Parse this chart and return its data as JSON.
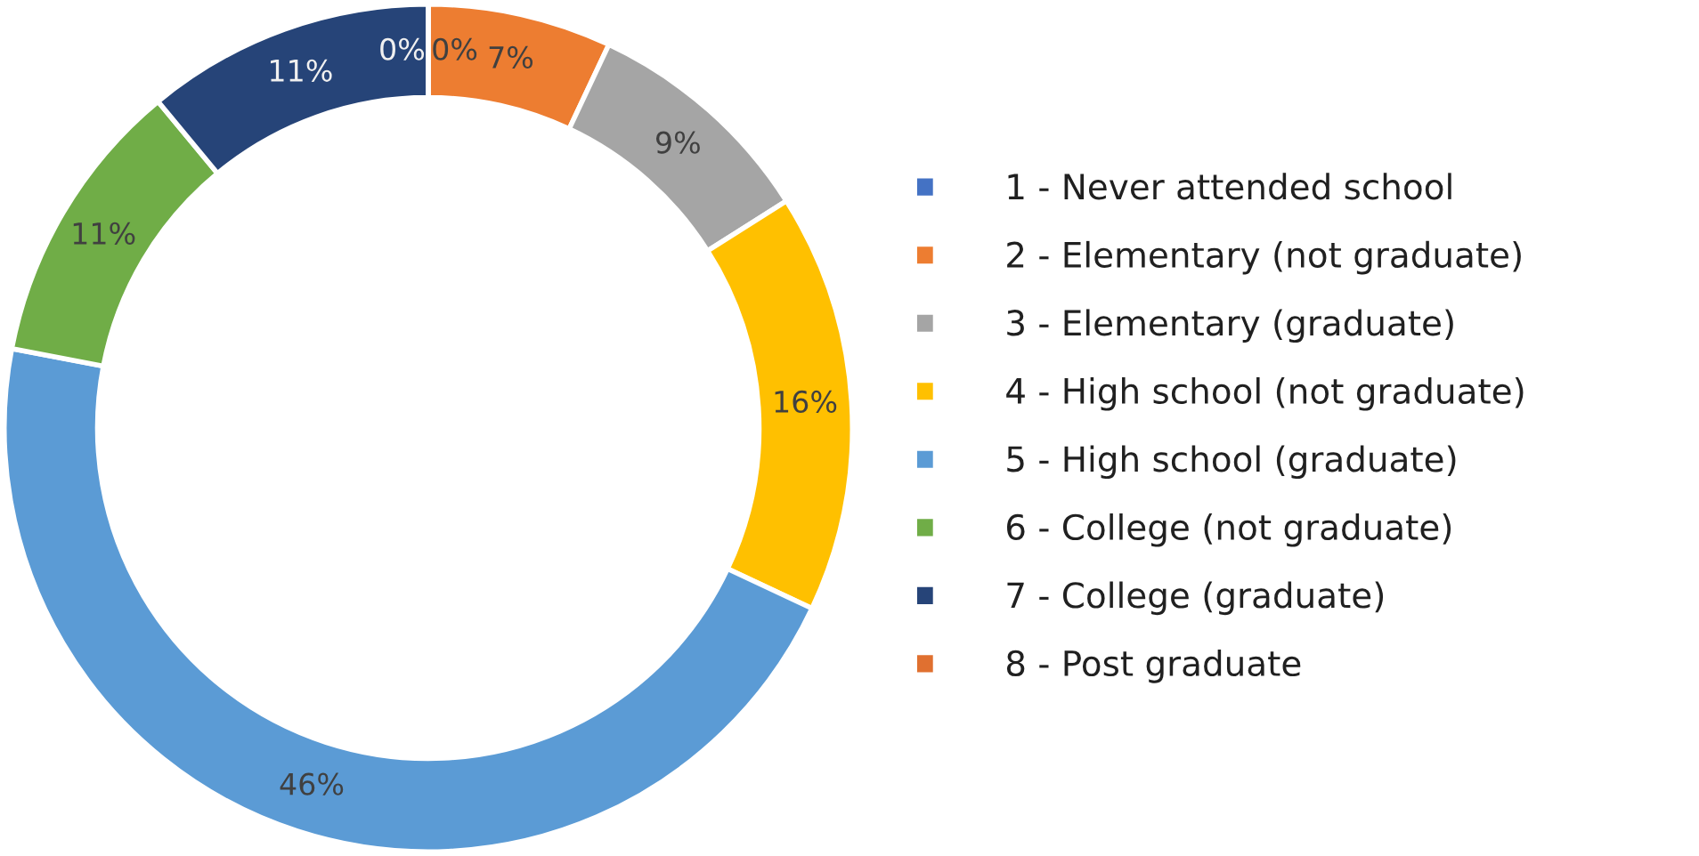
{
  "chart_data": {
    "type": "donut",
    "categories": [
      "1 - Never attended school",
      "2 - Elementary (not graduate)",
      "3 - Elementary (graduate)",
      "4 - High school (not graduate)",
      "5 - High school (graduate)",
      "6 - College (not graduate)",
      "7 - College (graduate)",
      "8 - Post graduate"
    ],
    "values": [
      0,
      7,
      9,
      16,
      46,
      11,
      11,
      0
    ],
    "colors": [
      "#4472c4",
      "#ed7d31",
      "#a5a5a5",
      "#ffc000",
      "#5b9bd5",
      "#70ad47",
      "#264478",
      "#e07030"
    ],
    "value_labels": [
      "0%",
      "7%",
      "9%",
      "16%",
      "46%",
      "11%",
      "11%",
      "0%"
    ],
    "legend": "right"
  }
}
